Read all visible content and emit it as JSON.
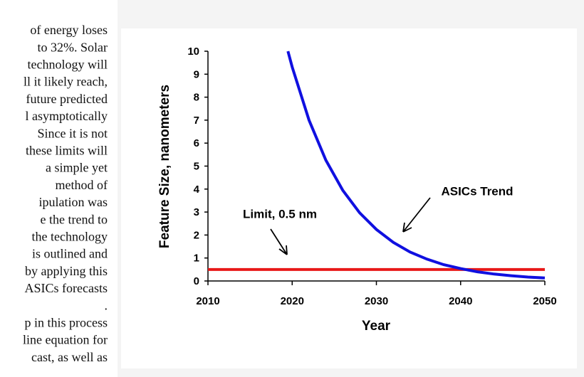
{
  "document": {
    "lines": [
      "of energy loses",
      "to 32%.  Solar",
      "technology will",
      "ll it likely reach,",
      "future predicted",
      "l  asymptotically",
      "Since it is not",
      "these limits will",
      "a   simple   yet",
      "method      of",
      "ipulation    was",
      "e  the  trend  to",
      "the technology",
      "is outlined and",
      "by applying this",
      "ASICs forecasts",
      ".",
      "p in this process",
      "line equation for",
      "cast, as well as"
    ]
  },
  "chart_data": {
    "type": "line",
    "xlabel": "Year",
    "ylabel": "Feature Size, nanometers",
    "xlim": [
      2010,
      2050
    ],
    "xticks": [
      2010,
      2020,
      2030,
      2040,
      2050
    ],
    "ylim": [
      0,
      10
    ],
    "yticks": [
      0,
      1,
      2,
      3,
      4,
      5,
      6,
      7,
      8,
      9,
      10
    ],
    "series": [
      {
        "name": "ASICs Trend",
        "color": "#1010e0",
        "x": [
          2019.5,
          2020,
          2022,
          2024,
          2026,
          2028,
          2030,
          2032,
          2034,
          2036,
          2038,
          2040,
          2042,
          2044,
          2046,
          2048,
          2050
        ],
        "values": [
          10,
          9.31,
          7.0,
          5.26,
          3.95,
          2.97,
          2.24,
          1.68,
          1.26,
          0.95,
          0.71,
          0.54,
          0.4,
          0.3,
          0.23,
          0.17,
          0.13
        ]
      },
      {
        "name": "Limit, 0.5 nm",
        "color": "#e81818",
        "x": [
          2010,
          2050
        ],
        "values": [
          0.5,
          0.5
        ]
      }
    ]
  }
}
